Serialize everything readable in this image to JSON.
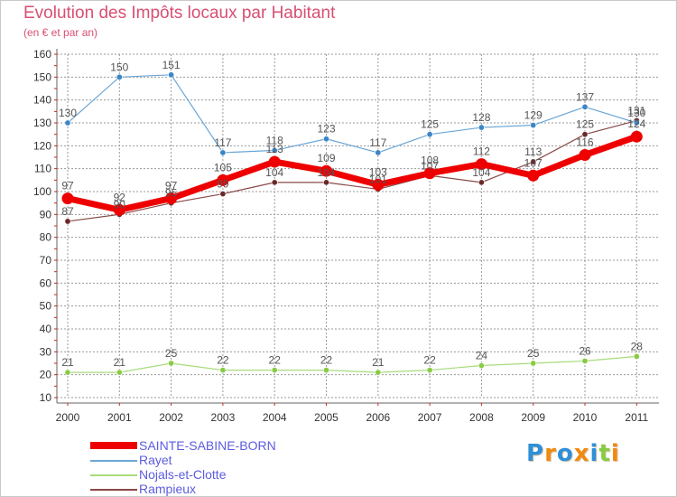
{
  "title": "Evolution des Impôts locaux par Habitant",
  "subtitle": "(en € et par an)",
  "colors": {
    "title": "#d94f73",
    "legend_text": "#5c5ce0",
    "grid": "#9a9a9a",
    "axis_tick": "#cc2222"
  },
  "chart_data": {
    "type": "line",
    "title": "Evolution des Impôts locaux par Habitant",
    "subtitle": "(en € et par an)",
    "xlabel": "",
    "ylabel": "",
    "ylim": [
      10,
      160
    ],
    "yticks": [
      10,
      20,
      30,
      40,
      50,
      60,
      70,
      80,
      90,
      100,
      110,
      120,
      130,
      140,
      150,
      160
    ],
    "grid": true,
    "legend_position": "bottom-left",
    "x": [
      "2000",
      "2001",
      "2002",
      "2003",
      "2004",
      "2005",
      "2006",
      "2007",
      "2008",
      "2009",
      "2010",
      "2011"
    ],
    "series": [
      {
        "name": "SAINTE-SABINE-BORN",
        "color": "#ee0000",
        "point_color": "#ee0000",
        "label_color": "#555555",
        "width": 7,
        "marker": 6.5,
        "values": [
          97,
          92,
          97,
          105,
          113,
          109,
          103,
          108,
          112,
          107,
          116,
          124
        ]
      },
      {
        "name": "Rayet",
        "color": "#6aa6d6",
        "point_color": "#3d86c6",
        "label_color": "#555555",
        "width": 1.2,
        "marker": 3.2,
        "values": [
          130,
          150,
          151,
          117,
          118,
          123,
          117,
          125,
          128,
          129,
          137,
          130
        ]
      },
      {
        "name": "Nojals-et-Clotte",
        "color": "#a8dc7c",
        "point_color": "#88cc44",
        "label_color": "#555555",
        "width": 1.2,
        "marker": 3.2,
        "values": [
          21,
          21,
          25,
          22,
          22,
          22,
          21,
          22,
          24,
          25,
          26,
          28
        ]
      },
      {
        "name": "Rampieux",
        "color": "#8a4848",
        "point_color": "#6b2a2a",
        "label_color": "#555555",
        "width": 1.2,
        "marker": 3.2,
        "values": [
          87,
          90,
          95,
          99,
          104,
          104,
          101,
          107,
          104,
          113,
          125,
          131
        ]
      }
    ]
  },
  "logo": {
    "letters": [
      "P",
      "r",
      "o",
      "x",
      "i",
      "t",
      "i"
    ],
    "letter_colors": [
      "#2f8fd8",
      "#f08a10",
      "#2f8fd8",
      "#f08a10",
      "#2f8fd8",
      "#88cc44",
      "#f08a10"
    ]
  }
}
